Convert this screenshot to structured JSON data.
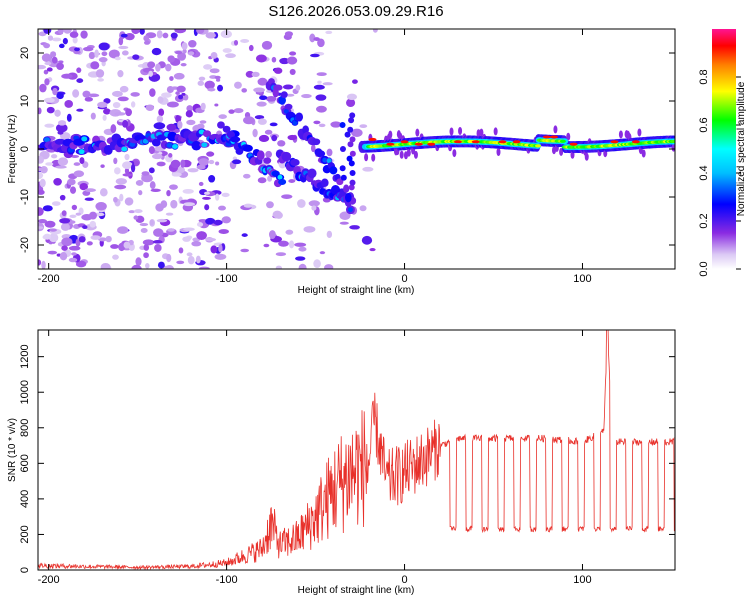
{
  "chart_data": [
    {
      "type": "heatmap",
      "title": "S126.2026.053.09.29.R16",
      "xlabel": "Height of straight line (km)",
      "ylabel": "Frequency (Hz)",
      "xlim": [
        -206,
        152
      ],
      "ylim": [
        -25,
        25
      ],
      "xticks": [
        -200,
        -100,
        0,
        100
      ],
      "yticks": [
        -20,
        -10,
        0,
        10,
        20
      ],
      "grid": false,
      "colorbar": {
        "label": "Normalized spectral amplitude",
        "range": [
          0,
          1
        ],
        "ticks": [
          "0.0",
          "0.2",
          "0.4",
          "0.6",
          "0.8"
        ],
        "colors": [
          "#ffffff",
          "#dccaf5",
          "#8a2be2",
          "#0000ff",
          "#00bfff",
          "#00ffff",
          "#00ff00",
          "#ffff00",
          "#ff8000",
          "#ff0000",
          "#ff1493"
        ]
      },
      "ridge": {
        "description_points": [
          [
            -200,
            0
          ],
          [
            -140,
            2
          ],
          [
            -110,
            3
          ],
          [
            -100,
            3
          ],
          [
            -90,
            -2
          ],
          [
            -80,
            -6
          ],
          [
            -70,
            12
          ],
          [
            -60,
            5
          ],
          [
            -50,
            0
          ],
          [
            -40,
            -8
          ],
          [
            -30,
            6
          ],
          [
            -20,
            3
          ],
          [
            0,
            1
          ],
          [
            50,
            1.5
          ],
          [
            80,
            2.5
          ],
          [
            100,
            1
          ],
          [
            150,
            1.5
          ]
        ]
      }
    },
    {
      "type": "line",
      "xlabel": "Height of straight line (km)",
      "ylabel": "SNR (10 * v/v)",
      "xlim": [
        -206,
        152
      ],
      "ylim": [
        0,
        1350
      ],
      "xticks": [
        -200,
        -100,
        0,
        100
      ],
      "yticks": [
        0,
        200,
        400,
        600,
        800,
        1000,
        1200
      ],
      "grid": false,
      "line_color": "#e8302a",
      "series_points": [
        [
          -206,
          25
        ],
        [
          -180,
          20
        ],
        [
          -150,
          15
        ],
        [
          -120,
          20
        ],
        [
          -100,
          40
        ],
        [
          -90,
          80
        ],
        [
          -80,
          120
        ],
        [
          -75,
          260
        ],
        [
          -70,
          140
        ],
        [
          -60,
          180
        ],
        [
          -50,
          300
        ],
        [
          -40,
          450
        ],
        [
          -30,
          550
        ],
        [
          -20,
          600
        ],
        [
          -17,
          850
        ],
        [
          -10,
          500
        ],
        [
          0,
          550
        ],
        [
          10,
          620
        ],
        [
          20,
          700
        ],
        [
          30,
          740
        ],
        [
          50,
          740
        ],
        [
          80,
          740
        ],
        [
          100,
          720
        ],
        [
          112,
          780
        ],
        [
          114,
          1350
        ],
        [
          117,
          720
        ],
        [
          150,
          720
        ]
      ],
      "dips": {
        "start": 20,
        "period": 9,
        "low": 230,
        "high": 740
      }
    }
  ]
}
